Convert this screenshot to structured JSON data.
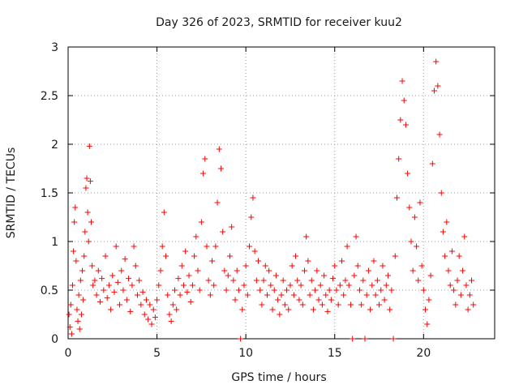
{
  "chart_data": {
    "type": "scatter",
    "title": "Day 326 of 2023, SRMTID for receiver kuu2",
    "xlabel": "GPS time / hours",
    "ylabel": "SRMTID / TECUs",
    "xlim": [
      0,
      24
    ],
    "ylim": [
      0,
      3
    ],
    "xticks": [
      0,
      5,
      10,
      15,
      20
    ],
    "xtick_labels": [
      "0",
      "5",
      "10",
      "15",
      "20"
    ],
    "yticks": [
      0,
      0.5,
      1,
      1.5,
      2,
      2.5,
      3
    ],
    "ytick_labels": [
      "0",
      "0.5",
      "1",
      "1.5",
      "2",
      "2.5",
      "3"
    ],
    "grid": true,
    "marker": "+",
    "color": "#ff0000",
    "series": [
      {
        "name": "SRMTID",
        "points": [
          [
            0.05,
            0.25
          ],
          [
            0.1,
            0.12
          ],
          [
            0.15,
            0.35
          ],
          [
            0.2,
            0.05
          ],
          [
            0.25,
            0.55
          ],
          [
            0.3,
            0.9
          ],
          [
            0.35,
            1.2
          ],
          [
            0.4,
            1.35
          ],
          [
            0.45,
            0.8
          ],
          [
            0.5,
            0.3
          ],
          [
            0.55,
            0.18
          ],
          [
            0.6,
            0.45
          ],
          [
            0.65,
            0.1
          ],
          [
            0.7,
            0.6
          ],
          [
            0.75,
            0.25
          ],
          [
            0.8,
            0.7
          ],
          [
            0.85,
            0.4
          ],
          [
            0.9,
            0.85
          ],
          [
            0.95,
            1.1
          ],
          [
            1.0,
            1.55
          ],
          [
            1.05,
            1.65
          ],
          [
            1.1,
            1.3
          ],
          [
            1.15,
            1.0
          ],
          [
            1.2,
            1.98
          ],
          [
            1.25,
            1.62
          ],
          [
            1.3,
            1.2
          ],
          [
            1.35,
            0.75
          ],
          [
            1.4,
            0.55
          ],
          [
            1.5,
            0.6
          ],
          [
            1.6,
            0.45
          ],
          [
            1.7,
            0.7
          ],
          [
            1.8,
            0.38
          ],
          [
            1.9,
            0.62
          ],
          [
            2.0,
            0.5
          ],
          [
            2.1,
            0.85
          ],
          [
            2.2,
            0.42
          ],
          [
            2.3,
            0.55
          ],
          [
            2.4,
            0.3
          ],
          [
            2.5,
            0.65
          ],
          [
            2.6,
            0.48
          ],
          [
            2.7,
            0.95
          ],
          [
            2.8,
            0.58
          ],
          [
            2.9,
            0.35
          ],
          [
            3.0,
            0.7
          ],
          [
            3.1,
            0.5
          ],
          [
            3.2,
            0.82
          ],
          [
            3.3,
            0.4
          ],
          [
            3.4,
            0.62
          ],
          [
            3.5,
            0.28
          ],
          [
            3.6,
            0.55
          ],
          [
            3.7,
            0.95
          ],
          [
            3.8,
            0.75
          ],
          [
            3.9,
            0.45
          ],
          [
            4.0,
            0.6
          ],
          [
            4.1,
            0.35
          ],
          [
            4.2,
            0.48
          ],
          [
            4.3,
            0.25
          ],
          [
            4.4,
            0.4
          ],
          [
            4.5,
            0.2
          ],
          [
            4.6,
            0.35
          ],
          [
            4.7,
            0.15
          ],
          [
            4.8,
            0.3
          ],
          [
            4.9,
            0.22
          ],
          [
            5.0,
            0.4
          ],
          [
            5.1,
            0.55
          ],
          [
            5.2,
            0.7
          ],
          [
            5.3,
            0.95
          ],
          [
            5.4,
            1.3
          ],
          [
            5.5,
            0.85
          ],
          [
            5.6,
            0.45
          ],
          [
            5.7,
            0.25
          ],
          [
            5.8,
            0.18
          ],
          [
            5.9,
            0.35
          ],
          [
            6.0,
            0.5
          ],
          [
            6.1,
            0.3
          ],
          [
            6.2,
            0.62
          ],
          [
            6.3,
            0.45
          ],
          [
            6.4,
            0.75
          ],
          [
            6.5,
            0.55
          ],
          [
            6.6,
            0.9
          ],
          [
            6.7,
            0.48
          ],
          [
            6.8,
            0.65
          ],
          [
            6.9,
            0.38
          ],
          [
            7.0,
            0.55
          ],
          [
            7.1,
            0.85
          ],
          [
            7.2,
            1.05
          ],
          [
            7.3,
            0.7
          ],
          [
            7.4,
            0.5
          ],
          [
            7.5,
            1.2
          ],
          [
            7.6,
            1.7
          ],
          [
            7.7,
            1.85
          ],
          [
            7.8,
            0.95
          ],
          [
            7.9,
            0.6
          ],
          [
            8.0,
            0.45
          ],
          [
            8.1,
            0.8
          ],
          [
            8.2,
            0.55
          ],
          [
            8.3,
            0.95
          ],
          [
            8.4,
            1.4
          ],
          [
            8.5,
            1.95
          ],
          [
            8.6,
            1.75
          ],
          [
            8.7,
            1.1
          ],
          [
            8.8,
            0.7
          ],
          [
            8.9,
            0.5
          ],
          [
            9.0,
            0.65
          ],
          [
            9.1,
            0.85
          ],
          [
            9.2,
            1.15
          ],
          [
            9.3,
            0.6
          ],
          [
            9.4,
            0.4
          ],
          [
            9.5,
            0.7
          ],
          [
            9.6,
            0.5
          ],
          [
            9.7,
            0.0
          ],
          [
            9.8,
            0.3
          ],
          [
            9.9,
            0.55
          ],
          [
            10.0,
            0.75
          ],
          [
            10.1,
            0.45
          ],
          [
            10.2,
            0.95
          ],
          [
            10.3,
            1.25
          ],
          [
            10.4,
            1.45
          ],
          [
            10.5,
            0.9
          ],
          [
            10.6,
            0.6
          ],
          [
            10.7,
            0.8
          ],
          [
            10.8,
            0.5
          ],
          [
            10.9,
            0.35
          ],
          [
            11.0,
            0.6
          ],
          [
            11.1,
            0.75
          ],
          [
            11.2,
            0.45
          ],
          [
            11.3,
            0.7
          ],
          [
            11.4,
            0.55
          ],
          [
            11.5,
            0.3
          ],
          [
            11.6,
            0.5
          ],
          [
            11.7,
            0.65
          ],
          [
            11.8,
            0.4
          ],
          [
            11.9,
            0.25
          ],
          [
            12.0,
            0.45
          ],
          [
            12.1,
            0.6
          ],
          [
            12.2,
            0.35
          ],
          [
            12.3,
            0.5
          ],
          [
            12.4,
            0.3
          ],
          [
            12.5,
            0.55
          ],
          [
            12.6,
            0.75
          ],
          [
            12.7,
            0.45
          ],
          [
            12.8,
            0.85
          ],
          [
            12.9,
            0.6
          ],
          [
            13.0,
            0.4
          ],
          [
            13.1,
            0.55
          ],
          [
            13.2,
            0.35
          ],
          [
            13.3,
            0.7
          ],
          [
            13.4,
            1.05
          ],
          [
            13.5,
            0.8
          ],
          [
            13.6,
            0.45
          ],
          [
            13.7,
            0.6
          ],
          [
            13.8,
            0.3
          ],
          [
            13.9,
            0.5
          ],
          [
            14.0,
            0.7
          ],
          [
            14.1,
            0.4
          ],
          [
            14.2,
            0.55
          ],
          [
            14.3,
            0.35
          ],
          [
            14.4,
            0.65
          ],
          [
            14.5,
            0.45
          ],
          [
            14.6,
            0.28
          ],
          [
            14.7,
            0.5
          ],
          [
            14.8,
            0.4
          ],
          [
            14.9,
            0.62
          ],
          [
            15.0,
            0.75
          ],
          [
            15.1,
            0.5
          ],
          [
            15.2,
            0.35
          ],
          [
            15.3,
            0.55
          ],
          [
            15.4,
            0.8
          ],
          [
            15.5,
            0.45
          ],
          [
            15.6,
            0.6
          ],
          [
            15.7,
            0.95
          ],
          [
            15.8,
            0.55
          ],
          [
            15.9,
            0.35
          ],
          [
            16.0,
            0.0
          ],
          [
            16.1,
            0.65
          ],
          [
            16.2,
            1.05
          ],
          [
            16.3,
            0.75
          ],
          [
            16.4,
            0.5
          ],
          [
            16.5,
            0.35
          ],
          [
            16.6,
            0.6
          ],
          [
            16.7,
            0.0
          ],
          [
            16.8,
            0.45
          ],
          [
            16.9,
            0.7
          ],
          [
            17.0,
            0.3
          ],
          [
            17.1,
            0.55
          ],
          [
            17.2,
            0.8
          ],
          [
            17.3,
            0.45
          ],
          [
            17.4,
            0.6
          ],
          [
            17.5,
            0.35
          ],
          [
            17.6,
            0.5
          ],
          [
            17.7,
            0.75
          ],
          [
            17.8,
            0.4
          ],
          [
            17.9,
            0.55
          ],
          [
            18.0,
            0.65
          ],
          [
            18.1,
            0.3
          ],
          [
            18.2,
            0.5
          ],
          [
            18.3,
            0.0
          ],
          [
            18.4,
            0.85
          ],
          [
            18.5,
            1.45
          ],
          [
            18.6,
            1.85
          ],
          [
            18.7,
            2.25
          ],
          [
            18.8,
            2.65
          ],
          [
            18.9,
            2.45
          ],
          [
            19.0,
            2.2
          ],
          [
            19.1,
            1.7
          ],
          [
            19.2,
            1.35
          ],
          [
            19.3,
            1.0
          ],
          [
            19.4,
            0.7
          ],
          [
            19.5,
            1.25
          ],
          [
            19.6,
            0.95
          ],
          [
            19.7,
            0.6
          ],
          [
            19.8,
            1.4
          ],
          [
            19.9,
            0.75
          ],
          [
            20.0,
            0.5
          ],
          [
            20.1,
            0.3
          ],
          [
            20.2,
            0.15
          ],
          [
            20.3,
            0.4
          ],
          [
            20.4,
            0.65
          ],
          [
            20.5,
            1.8
          ],
          [
            20.6,
            2.55
          ],
          [
            20.7,
            2.85
          ],
          [
            20.8,
            2.6
          ],
          [
            20.9,
            2.1
          ],
          [
            21.0,
            1.5
          ],
          [
            21.1,
            1.1
          ],
          [
            21.2,
            0.85
          ],
          [
            21.3,
            1.2
          ],
          [
            21.4,
            0.7
          ],
          [
            21.5,
            0.55
          ],
          [
            21.6,
            0.9
          ],
          [
            21.7,
            0.5
          ],
          [
            21.8,
            0.35
          ],
          [
            21.9,
            0.6
          ],
          [
            22.0,
            0.85
          ],
          [
            22.1,
            0.45
          ],
          [
            22.2,
            0.7
          ],
          [
            22.3,
            1.05
          ],
          [
            22.4,
            0.55
          ],
          [
            22.5,
            0.3
          ],
          [
            22.6,
            0.45
          ],
          [
            22.7,
            0.6
          ],
          [
            22.8,
            0.35
          ]
        ]
      }
    ]
  }
}
